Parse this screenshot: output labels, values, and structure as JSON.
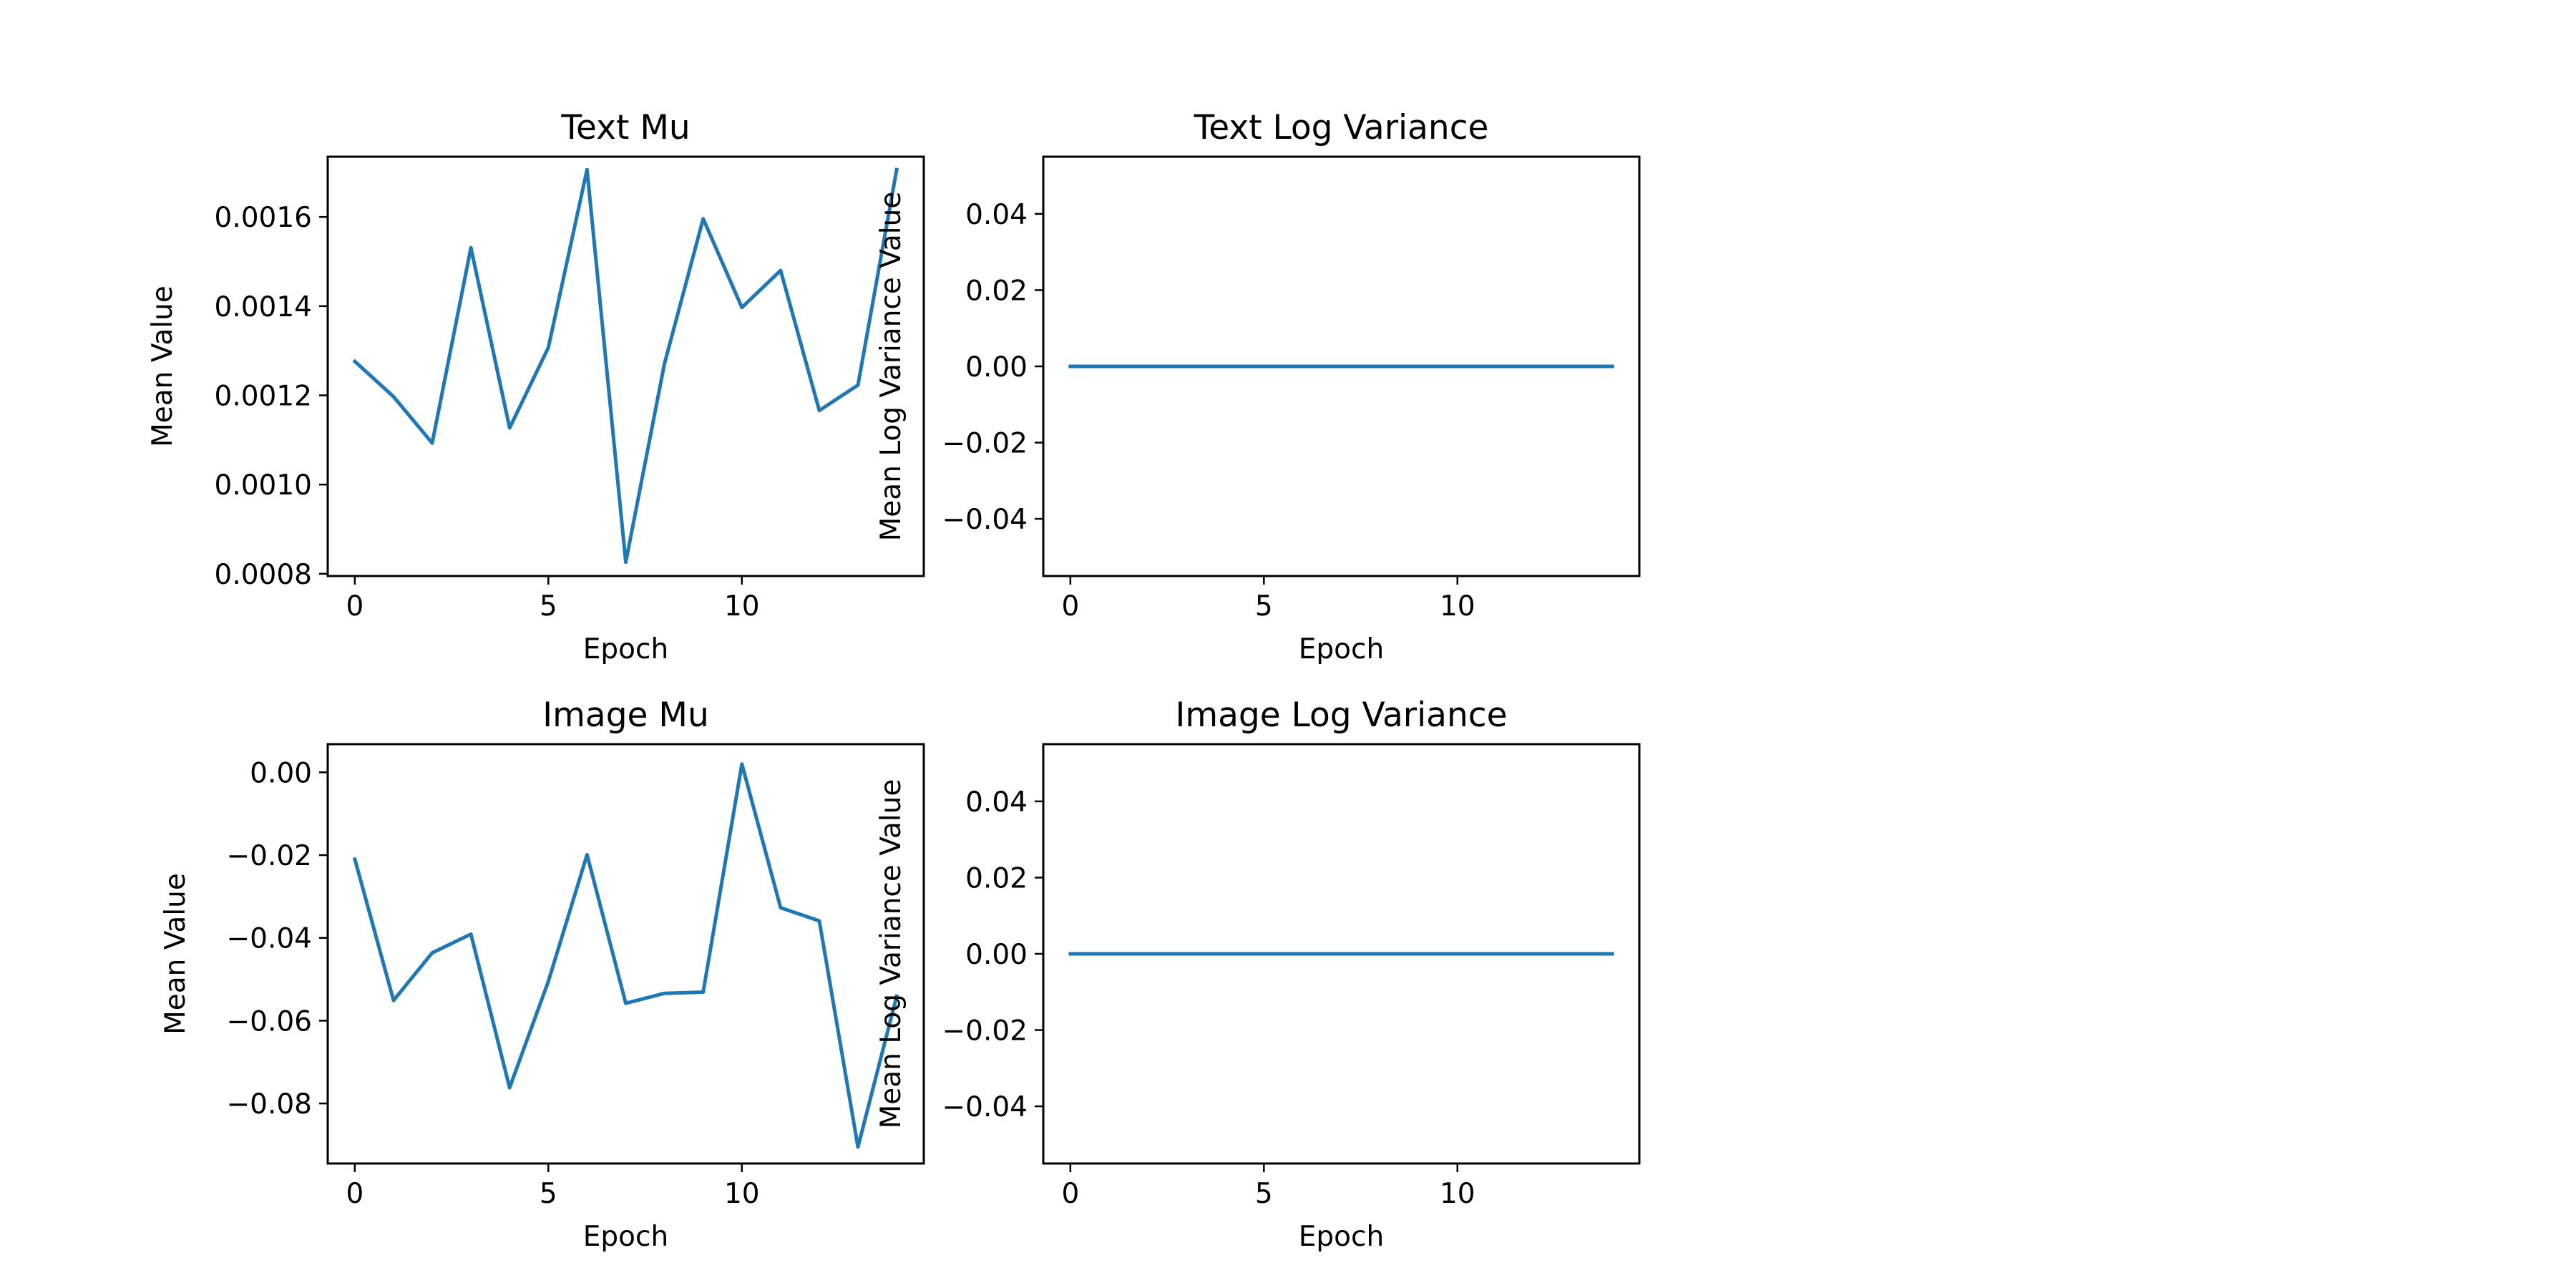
{
  "chart_data": [
    {
      "type": "line",
      "title": "Text Mu",
      "xlabel": "Epoch",
      "ylabel": "Mean Value",
      "xlim": [
        -0.7,
        14.7
      ],
      "ylim": [
        0.000795,
        0.001735
      ],
      "xticks": [
        0,
        5,
        10
      ],
      "xtick_labels": [
        "0",
        "5",
        "10"
      ],
      "yticks": [
        0.0008,
        0.001,
        0.0012,
        0.0014,
        0.0016
      ],
      "ytick_labels": [
        "0.0008",
        "0.0010",
        "0.0012",
        "0.0014",
        "0.0016"
      ],
      "grid": false,
      "color": "#1f77b4",
      "x": [
        0,
        1,
        2,
        3,
        4,
        5,
        6,
        7,
        8,
        9,
        10,
        11,
        12,
        13,
        14
      ],
      "y": [
        0.001276,
        0.001197,
        0.001093,
        0.001531,
        0.001127,
        0.001307,
        0.001706,
        0.000826,
        0.001271,
        0.001596,
        0.001397,
        0.00148,
        0.001166,
        0.001223,
        0.001706
      ]
    },
    {
      "type": "line",
      "title": "Text Log Variance",
      "xlabel": "Epoch",
      "ylabel": "Mean Log Variance Value",
      "xlim": [
        -0.7,
        14.7
      ],
      "ylim": [
        -0.055,
        0.055
      ],
      "xticks": [
        0,
        5,
        10
      ],
      "xtick_labels": [
        "0",
        "5",
        "10"
      ],
      "yticks": [
        -0.04,
        -0.02,
        0,
        0.02,
        0.04
      ],
      "ytick_labels": [
        "−0.04",
        "−0.02",
        "0.00",
        "0.02",
        "0.04"
      ],
      "grid": false,
      "color": "#1f77b4",
      "x": [
        0,
        1,
        2,
        3,
        4,
        5,
        6,
        7,
        8,
        9,
        10,
        11,
        12,
        13,
        14
      ],
      "y": [
        0,
        0,
        0,
        0,
        0,
        0,
        0,
        0,
        0,
        0,
        0,
        0,
        0,
        0,
        0
      ]
    },
    {
      "type": "line",
      "title": "Image Mu",
      "xlabel": "Epoch",
      "ylabel": "Mean Value",
      "xlim": [
        -0.7,
        14.7
      ],
      "ylim": [
        -0.0945,
        0.0068
      ],
      "xticks": [
        0,
        5,
        10
      ],
      "xtick_labels": [
        "0",
        "5",
        "10"
      ],
      "yticks": [
        -0.08,
        -0.06,
        -0.04,
        -0.02,
        0
      ],
      "ytick_labels": [
        "−0.08",
        "−0.06",
        "−0.04",
        "−0.02",
        "0.00"
      ],
      "grid": false,
      "color": "#1f77b4",
      "x": [
        0,
        1,
        2,
        3,
        4,
        5,
        6,
        7,
        8,
        9,
        10,
        11,
        12,
        13,
        14
      ],
      "y": [
        -0.021,
        -0.0551,
        -0.0436,
        -0.0391,
        -0.0762,
        -0.0505,
        -0.0199,
        -0.0558,
        -0.0534,
        -0.0531,
        0.002,
        -0.0327,
        -0.0359,
        -0.0905,
        -0.0541
      ]
    },
    {
      "type": "line",
      "title": "Image Log Variance",
      "xlabel": "Epoch",
      "ylabel": "Mean Log Variance Value",
      "xlim": [
        -0.7,
        14.7
      ],
      "ylim": [
        -0.055,
        0.055
      ],
      "xticks": [
        0,
        5,
        10
      ],
      "xtick_labels": [
        "0",
        "5",
        "10"
      ],
      "yticks": [
        -0.04,
        -0.02,
        0,
        0.02,
        0.04
      ],
      "ytick_labels": [
        "−0.04",
        "−0.02",
        "0.00",
        "0.02",
        "0.04"
      ],
      "grid": false,
      "color": "#1f77b4",
      "x": [
        0,
        1,
        2,
        3,
        4,
        5,
        6,
        7,
        8,
        9,
        10,
        11,
        12,
        13,
        14
      ],
      "y": [
        0,
        0,
        0,
        0,
        0,
        0,
        0,
        0,
        0,
        0,
        0,
        0,
        0,
        0,
        0
      ]
    }
  ]
}
